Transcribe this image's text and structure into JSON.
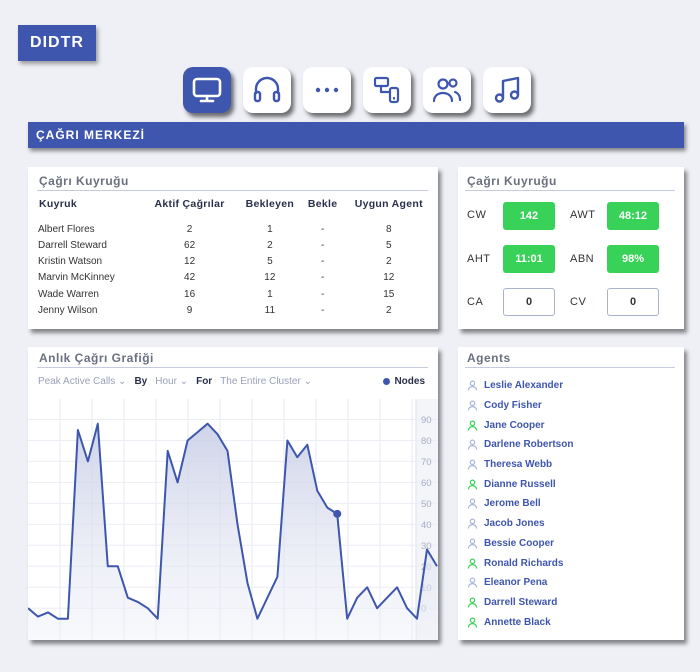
{
  "app": {
    "logo": "DIDTR"
  },
  "toolbar": [
    {
      "icon": "monitor-icon",
      "active": true
    },
    {
      "icon": "headset-icon",
      "active": false
    },
    {
      "icon": "more-dots-icon",
      "active": false
    },
    {
      "icon": "devices-icon",
      "active": false
    },
    {
      "icon": "users-icon",
      "active": false
    },
    {
      "icon": "music-icon",
      "active": false
    }
  ],
  "banner": {
    "title": "ÇAĞRI MERKEZİ"
  },
  "queue": {
    "title": "Çağrı Kuyruğu",
    "columns": [
      "Kuyruk",
      "Aktif Çağrılar",
      "Bekleyen",
      "Bekle",
      "Uygun Agent"
    ],
    "rows": [
      [
        "Albert Flores",
        "2",
        "1",
        "-",
        "8"
      ],
      [
        "Darrell Steward",
        "62",
        "2",
        "-",
        "5"
      ],
      [
        "Kristin Watson",
        "12",
        "5",
        "-",
        "2"
      ],
      [
        "Marvin McKinney",
        "42",
        "12",
        "-",
        "12"
      ],
      [
        "Wade Warren",
        "16",
        "1",
        "-",
        "15"
      ],
      [
        "Jenny Wilson",
        "9",
        "11",
        "-",
        "2"
      ]
    ]
  },
  "kpi": {
    "title": "Çağrı Kuyruğu",
    "items": [
      {
        "label": "CW",
        "value": "142",
        "status": "good"
      },
      {
        "label": "AWT",
        "value": "48:12",
        "status": "good"
      },
      {
        "label": "AHT",
        "value": "11:01",
        "status": "good"
      },
      {
        "label": "ABN",
        "value": "98%",
        "status": "good"
      },
      {
        "label": "CA",
        "value": "0",
        "status": "neutral"
      },
      {
        "label": "CV",
        "value": "0",
        "status": "neutral"
      }
    ]
  },
  "chart_panel": {
    "title": "Anlık Çağrı Grafiği",
    "metric": "Peak Active Calls",
    "by_label": "By",
    "by_value": "Hour",
    "for_label": "For",
    "for_value": "The Entire Cluster",
    "legend": "Nodes"
  },
  "chart_data": {
    "type": "area",
    "series": [
      {
        "name": "Nodes",
        "values": [
          0,
          -4,
          -2,
          -5,
          -5,
          85,
          70,
          88,
          20,
          20,
          5,
          3,
          0,
          -5,
          75,
          60,
          80,
          84,
          88,
          83,
          75,
          40,
          12,
          -5,
          5,
          15,
          80,
          72,
          78,
          56,
          48,
          45,
          -5,
          5,
          10,
          0,
          5,
          10,
          0,
          -5,
          28,
          20
        ],
        "highlight_index": 31
      }
    ],
    "ylim": [
      -8,
      95
    ],
    "yticks": [
      0,
      10,
      20,
      30,
      40,
      50,
      60,
      70,
      80,
      90
    ],
    "grid": true
  },
  "agents": {
    "title": "Agents",
    "list": [
      {
        "name": "Leslie Alexander",
        "online": false
      },
      {
        "name": "Cody Fisher",
        "online": false
      },
      {
        "name": "Jane Cooper",
        "online": true
      },
      {
        "name": "Darlene Robertson",
        "online": false
      },
      {
        "name": "Theresa Webb",
        "online": false
      },
      {
        "name": "Dianne Russell",
        "online": true
      },
      {
        "name": "Jerome Bell",
        "online": false
      },
      {
        "name": "Jacob Jones",
        "online": false
      },
      {
        "name": "Bessie Cooper",
        "online": false
      },
      {
        "name": "Ronald Richards",
        "online": true
      },
      {
        "name": "Eleanor Pena",
        "online": false
      },
      {
        "name": "Darrell Steward",
        "online": true
      },
      {
        "name": "Annette Black",
        "online": true
      }
    ]
  },
  "colors": {
    "brand": "#3e56ad",
    "good": "#37d257",
    "agent_offline": "#a9b6d9",
    "agent_online": "#37d257"
  }
}
